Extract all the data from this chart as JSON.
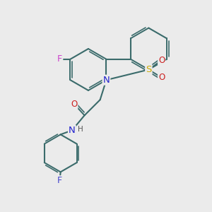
{
  "bg_color": "#ebebeb",
  "bond_color": "#3a6b6b",
  "atom_colors": {
    "F_pink": "#cc44cc",
    "F_blue": "#4444cc",
    "N": "#2222cc",
    "S": "#ccaa00",
    "O": "#cc2222",
    "C": "#3a6b6b",
    "H": "#555555"
  },
  "figsize": [
    3.0,
    3.0
  ],
  "dpi": 100
}
